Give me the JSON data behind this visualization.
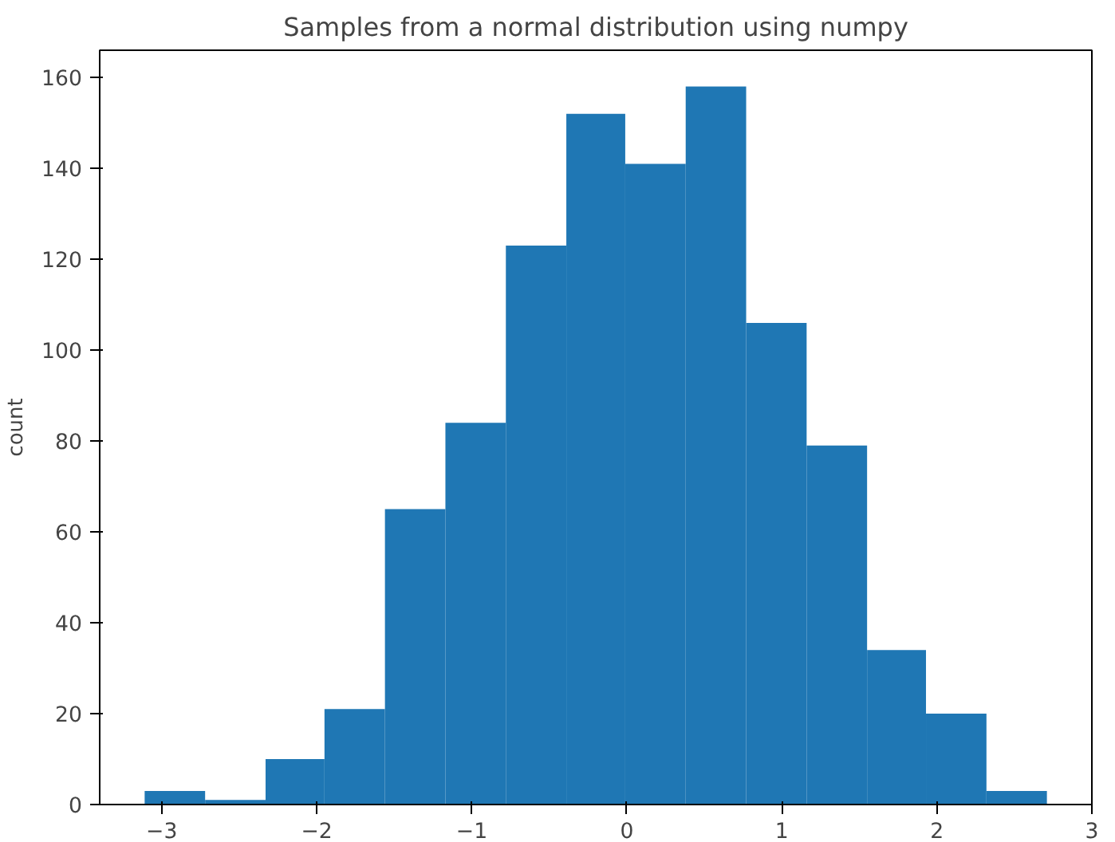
{
  "chart_data": {
    "type": "histogram",
    "title": "Samples from a normal distribution using numpy",
    "ylabel": "count",
    "bins": [
      -3.11,
      -2.72,
      -2.33,
      -1.95,
      -1.56,
      -1.17,
      -0.78,
      -0.39,
      -0.01,
      0.38,
      0.77,
      1.16,
      1.55,
      1.93,
      2.32,
      2.71
    ],
    "values": [
      3,
      1,
      10,
      21,
      65,
      84,
      123,
      152,
      141,
      158,
      106,
      79,
      34,
      20,
      3
    ],
    "color": "#1f77b4",
    "xlim": [
      -3.4,
      3.0
    ],
    "ylim": [
      0,
      166
    ],
    "xticks": [
      -3,
      -2,
      -1,
      0,
      1,
      2,
      3
    ],
    "yticks": [
      0,
      20,
      40,
      60,
      80,
      100,
      120,
      140,
      160
    ],
    "grid": false
  }
}
